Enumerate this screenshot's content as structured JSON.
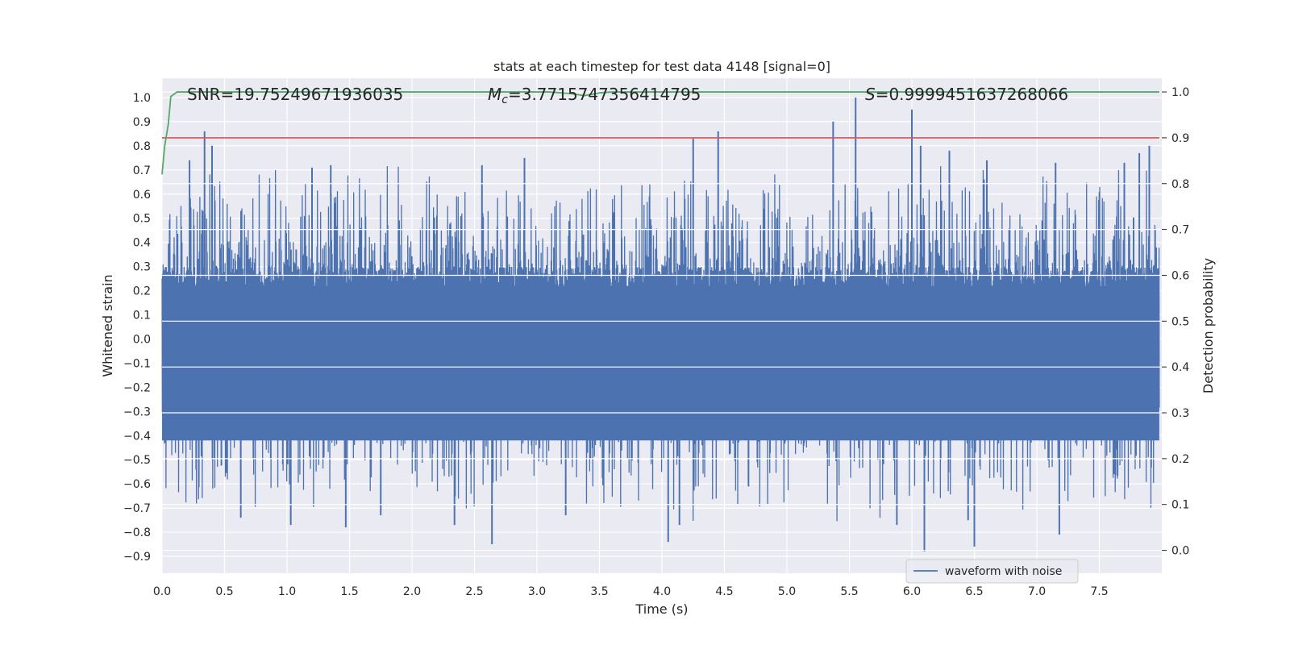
{
  "chart_data": {
    "type": "line",
    "title": "stats at each timestep for test data 4148 [signal=0]",
    "xlabel": "Time (s)",
    "ylabel": "Whitened strain",
    "ylabel_right": "Detection probability",
    "xlim": [
      0.0,
      8.0
    ],
    "ylim": [
      -0.97,
      1.08
    ],
    "ylim_right": [
      -0.05,
      1.03
    ],
    "x_ticks": [
      "0.0",
      "0.5",
      "1.0",
      "1.5",
      "2.0",
      "2.5",
      "3.0",
      "3.5",
      "4.0",
      "4.5",
      "5.0",
      "5.5",
      "6.0",
      "6.5",
      "7.0",
      "7.5"
    ],
    "y_ticks": [
      "1.0",
      "0.9",
      "0.8",
      "0.7",
      "0.6",
      "0.5",
      "0.4",
      "0.3",
      "0.2",
      "0.1",
      "0.0",
      "−0.1",
      "−0.2",
      "−0.3",
      "−0.4",
      "−0.5",
      "−0.6",
      "−0.7",
      "−0.8",
      "−0.9"
    ],
    "y_ticks_right": [
      "1.0",
      "0.9",
      "0.8",
      "0.7",
      "0.6",
      "0.5",
      "0.4",
      "0.3",
      "0.2",
      "0.1",
      "0.0"
    ],
    "grid": true,
    "legend_position": "bottom-right",
    "annotations": {
      "snr": "SNR=19.75249671936035",
      "mc_symbol": "M",
      "mc_sub": "c",
      "mc_value": "=3.7715747356414795",
      "s_symbol": "S",
      "s_value": "=0.9999451637268066"
    },
    "series": [
      {
        "name": "waveform with noise",
        "color": "#4c72b0",
        "axis": "left",
        "description_kind": "dense noise envelope",
        "x_range": [
          0.0,
          7.98
        ],
        "upper_spikes": [
          [
            0.34,
            0.86
          ],
          [
            0.4,
            0.8
          ],
          [
            0.22,
            0.74
          ],
          [
            1.2,
            0.71
          ],
          [
            1.35,
            0.72
          ],
          [
            2.56,
            0.72
          ],
          [
            2.9,
            0.75
          ],
          [
            4.25,
            0.83
          ],
          [
            4.45,
            0.86
          ],
          [
            5.37,
            0.9
          ],
          [
            5.55,
            1.0
          ],
          [
            6.0,
            0.95
          ],
          [
            6.07,
            0.8
          ],
          [
            6.3,
            0.78
          ],
          [
            6.6,
            0.74
          ],
          [
            7.9,
            0.8
          ],
          [
            7.82,
            0.77
          ],
          [
            7.7,
            0.73
          ],
          [
            7.15,
            0.73
          ]
        ],
        "lower_spikes": [
          [
            2.64,
            -0.85
          ],
          [
            4.05,
            -0.84
          ],
          [
            6.1,
            -0.88
          ],
          [
            6.5,
            -0.86
          ],
          [
            7.18,
            -0.81
          ],
          [
            1.47,
            -0.78
          ],
          [
            1.03,
            -0.77
          ],
          [
            4.14,
            -0.77
          ],
          [
            2.34,
            -0.77
          ],
          [
            5.88,
            -0.77
          ],
          [
            6.45,
            -0.75
          ],
          [
            0.63,
            -0.74
          ],
          [
            3.23,
            -0.73
          ],
          [
            1.75,
            -0.73
          ]
        ]
      },
      {
        "name": "",
        "color": "#dd4c4c",
        "axis": "right",
        "kind": "threshold",
        "value": 0.9
      },
      {
        "name": "",
        "color": "#55a868",
        "axis": "right",
        "kind": "detection probability",
        "points": [
          [
            0.0,
            0.82
          ],
          [
            0.02,
            0.88
          ],
          [
            0.05,
            0.93
          ],
          [
            0.07,
            0.99
          ],
          [
            0.12,
            1.0
          ],
          [
            3.1,
            1.0
          ],
          [
            3.25,
            0.997
          ],
          [
            3.38,
            0.992
          ],
          [
            3.5,
            0.998
          ],
          [
            3.6,
            1.0
          ],
          [
            7.98,
            1.0
          ]
        ]
      }
    ]
  }
}
